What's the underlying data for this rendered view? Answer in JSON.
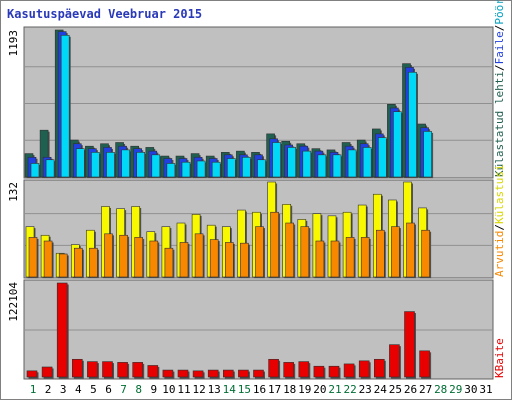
{
  "title": "Kasutuspäevad Veebruar 2015",
  "days": [
    "1",
    "2",
    "3",
    "4",
    "5",
    "6",
    "7",
    "8",
    "9",
    "10",
    "11",
    "12",
    "13",
    "14",
    "15",
    "16",
    "17",
    "18",
    "19",
    "20",
    "21",
    "22",
    "23",
    "24",
    "25",
    "26",
    "27",
    "28",
    "29",
    "30",
    "31"
  ],
  "weekend_days": [
    "1",
    "7",
    "8",
    "14",
    "15",
    "21",
    "22",
    "28",
    "29"
  ],
  "colors": {
    "weekday_label": "#000000",
    "weekend_label": "#006e33",
    "plot_bg": "#c0c0c0",
    "grid": "#909090",
    "pages": "#206050",
    "files": "#2040e0",
    "hits": "#00d8f8",
    "visits": "#f88800",
    "unique": "#f8f800",
    "bytes": "#e80000"
  },
  "panels": {
    "top": {
      "max_label": "1193",
      "legend": [
        "Pöördumisi",
        "Faile",
        "Külastatud lehti"
      ]
    },
    "middle": {
      "max_label": "132",
      "legend": [
        "Külastusi",
        "Arvutid"
      ]
    },
    "bottom": {
      "max_label": "122104",
      "legend": [
        "KBaite"
      ]
    }
  },
  "chart_data": [
    {
      "type": "bar",
      "categories": [
        "1",
        "2",
        "3",
        "4",
        "5",
        "6",
        "7",
        "8",
        "9",
        "10",
        "11",
        "12",
        "13",
        "14",
        "15",
        "16",
        "17",
        "18",
        "19",
        "20",
        "21",
        "22",
        "23",
        "24",
        "25",
        "26",
        "27",
        "28",
        "29",
        "30",
        "31"
      ],
      "ylim": [
        0,
        1300
      ],
      "series": [
        {
          "name": "Külastatud lehti",
          "values": [
            190,
            380,
            1193,
            300,
            250,
            270,
            280,
            250,
            240,
            170,
            170,
            190,
            170,
            200,
            210,
            200,
            350,
            290,
            270,
            230,
            220,
            280,
            300,
            390,
            590,
            920,
            430,
            null,
            null,
            null,
            null
          ]
        },
        {
          "name": "Faile",
          "values": [
            160,
            160,
            1180,
            270,
            230,
            240,
            250,
            230,
            210,
            150,
            150,
            160,
            150,
            180,
            180,
            180,
            310,
            260,
            250,
            210,
            200,
            250,
            270,
            350,
            560,
            890,
            400,
            null,
            null,
            null,
            null
          ]
        },
        {
          "name": "Pöördumisi",
          "values": [
            110,
            140,
            1150,
            230,
            200,
            200,
            220,
            200,
            180,
            110,
            120,
            130,
            120,
            150,
            160,
            140,
            280,
            240,
            210,
            180,
            180,
            220,
            240,
            320,
            530,
            850,
            370,
            null,
            null,
            null,
            null
          ]
        }
      ]
    },
    {
      "type": "bar",
      "categories": [
        "1",
        "2",
        "3",
        "4",
        "5",
        "6",
        "7",
        "8",
        "9",
        "10",
        "11",
        "12",
        "13",
        "14",
        "15",
        "16",
        "17",
        "18",
        "19",
        "20",
        "21",
        "22",
        "23",
        "24",
        "25",
        "26",
        "27",
        "28",
        "29",
        "30",
        "31"
      ],
      "ylim": [
        0,
        145
      ],
      "series": [
        {
          "name": "Arvutid",
          "values": [
            70,
            58,
            33,
            45,
            65,
            98,
            95,
            98,
            63,
            70,
            75,
            87,
            72,
            70,
            93,
            90,
            132,
            101,
            80,
            88,
            85,
            90,
            100,
            115,
            107,
            132,
            96,
            null,
            null,
            null,
            null
          ]
        },
        {
          "name": "Külastusi",
          "values": [
            55,
            50,
            32,
            40,
            40,
            60,
            58,
            55,
            50,
            40,
            48,
            60,
            52,
            48,
            47,
            70,
            90,
            75,
            70,
            50,
            50,
            55,
            55,
            65,
            70,
            75,
            65,
            null,
            null,
            null,
            null
          ]
        }
      ]
    },
    {
      "type": "bar",
      "categories": [
        "1",
        "2",
        "3",
        "4",
        "5",
        "6",
        "7",
        "8",
        "9",
        "10",
        "11",
        "12",
        "13",
        "14",
        "15",
        "16",
        "17",
        "18",
        "19",
        "20",
        "21",
        "22",
        "23",
        "24",
        "25",
        "26",
        "27",
        "28",
        "29",
        "30",
        "31"
      ],
      "ylim": [
        0,
        125000
      ],
      "series": [
        {
          "name": "KBaite",
          "values": [
            8000,
            13000,
            122104,
            23000,
            20000,
            20000,
            19000,
            19000,
            15000,
            9000,
            9000,
            8000,
            9000,
            9000,
            9000,
            9000,
            23000,
            19000,
            20000,
            14000,
            14000,
            17000,
            21000,
            23000,
            42000,
            85000,
            34000,
            null,
            null,
            null,
            null
          ]
        }
      ]
    }
  ]
}
